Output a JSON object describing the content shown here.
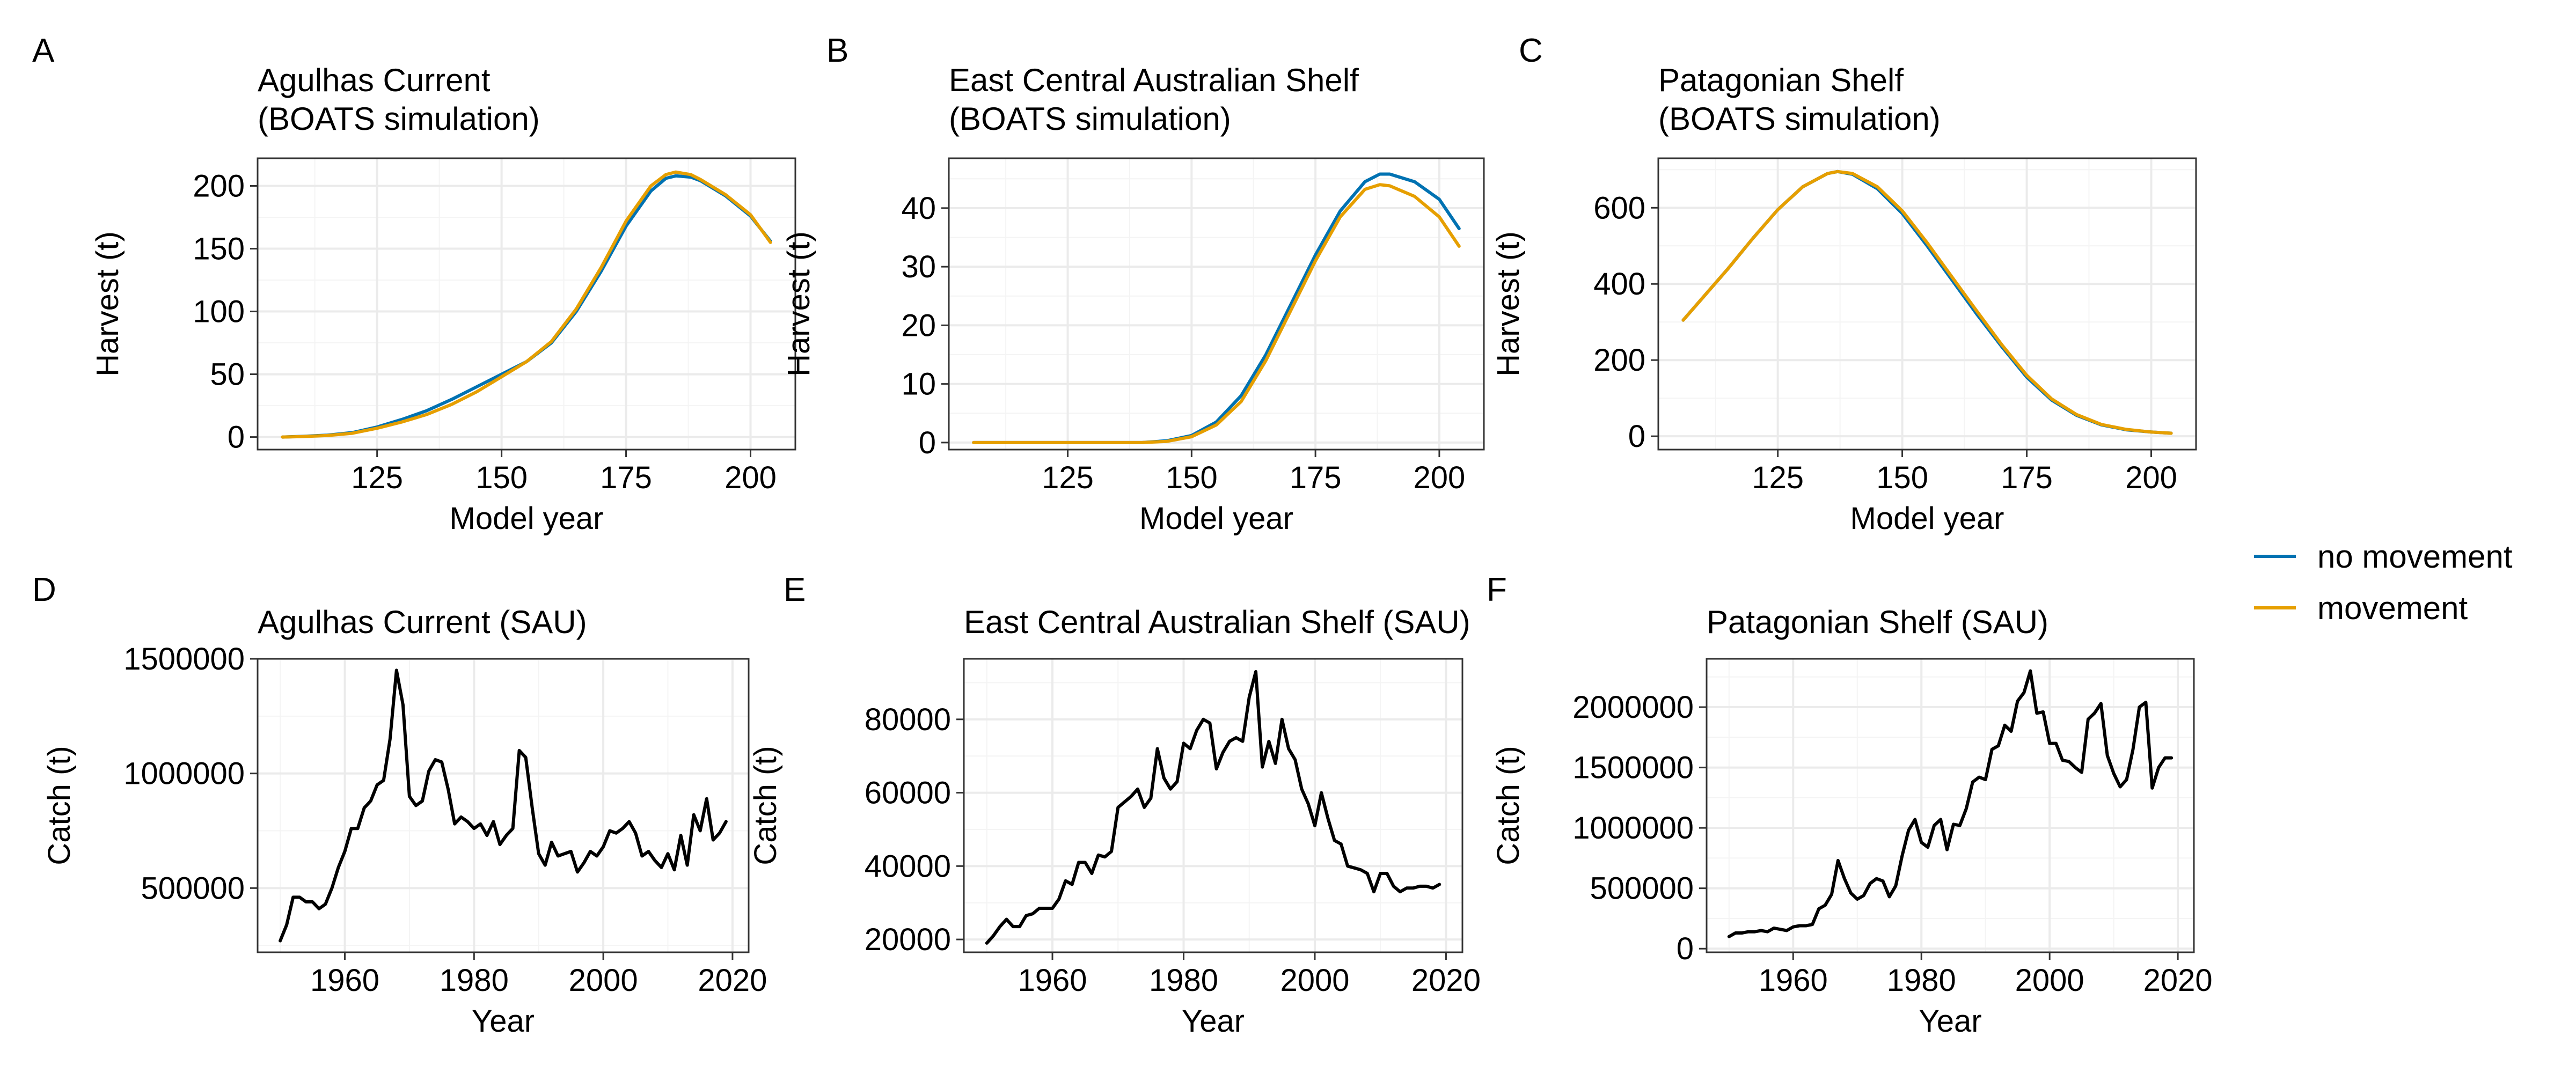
{
  "legend": {
    "entries": [
      {
        "label": "no movement",
        "color": "#0072B2"
      },
      {
        "label": "movement",
        "color": "#E69F00"
      }
    ]
  },
  "chart_data": [
    {
      "type": "line",
      "panel_letter": "A",
      "title": "Agulhas Current",
      "subtitle": "(BOATS simulation)",
      "xlabel": "Model year",
      "ylabel": "Harvest (t)",
      "xlim": [
        101,
        209
      ],
      "ylim": [
        -10,
        222
      ],
      "xticks": [
        125,
        150,
        175,
        200
      ],
      "yticks": [
        0,
        50,
        100,
        150,
        200
      ],
      "grid": true,
      "series": [
        {
          "name": "no movement",
          "color": "#0072B2",
          "x": [
            106,
            110,
            115,
            120,
            125,
            130,
            135,
            140,
            145,
            150,
            155,
            160,
            165,
            170,
            175,
            180,
            183,
            185,
            188,
            190,
            195,
            200,
            204
          ],
          "values": [
            0,
            0.5,
            1.5,
            3.5,
            8,
            14,
            21,
            30,
            40,
            50,
            60,
            75,
            100,
            132,
            168,
            196,
            206,
            208,
            207,
            204,
            192,
            176,
            156
          ]
        },
        {
          "name": "movement",
          "color": "#E69F00",
          "x": [
            106,
            110,
            115,
            120,
            125,
            130,
            135,
            140,
            145,
            150,
            155,
            160,
            165,
            170,
            175,
            180,
            183,
            185,
            188,
            190,
            195,
            200,
            204
          ],
          "values": [
            0,
            0.4,
            1.2,
            3,
            7,
            12,
            18,
            26,
            36,
            48,
            60,
            76,
            102,
            135,
            172,
            200,
            209,
            211,
            209,
            205,
            193,
            177,
            155
          ]
        }
      ]
    },
    {
      "type": "line",
      "panel_letter": "B",
      "title": "East Central Australian Shelf",
      "subtitle": "(BOATS simulation)",
      "xlabel": "Model year",
      "ylabel": "Harvest (t)",
      "xlim": [
        101,
        209
      ],
      "ylim": [
        -1.2,
        48.5
      ],
      "xticks": [
        125,
        150,
        175,
        200
      ],
      "yticks": [
        0,
        10,
        20,
        30,
        40
      ],
      "grid": true,
      "series": [
        {
          "name": "no movement",
          "color": "#0072B2",
          "x": [
            106,
            120,
            130,
            140,
            145,
            150,
            155,
            160,
            165,
            170,
            175,
            180,
            185,
            188,
            190,
            195,
            200,
            204
          ],
          "values": [
            0,
            0,
            0,
            0,
            0.3,
            1.2,
            3.5,
            8,
            15,
            23.5,
            32,
            39.5,
            44.5,
            45.8,
            45.8,
            44.5,
            41.5,
            36.5
          ]
        },
        {
          "name": "movement",
          "color": "#E69F00",
          "x": [
            106,
            120,
            130,
            140,
            145,
            150,
            155,
            160,
            165,
            170,
            175,
            180,
            185,
            188,
            190,
            195,
            200,
            204
          ],
          "values": [
            0,
            0,
            0,
            0,
            0.2,
            1,
            3,
            7,
            14,
            22.5,
            31,
            38.5,
            43.2,
            44,
            43.8,
            42,
            38.5,
            33.5
          ]
        }
      ]
    },
    {
      "type": "line",
      "panel_letter": "C",
      "title": "Patagonian Shelf",
      "subtitle": "(BOATS simulation)",
      "xlabel": "Model year",
      "ylabel": "Harvest (t)",
      "xlim": [
        101,
        209
      ],
      "ylim": [
        -35,
        730
      ],
      "xticks": [
        125,
        150,
        175,
        200
      ],
      "yticks": [
        0,
        200,
        400,
        600
      ],
      "grid": true,
      "series": [
        {
          "name": "no movement",
          "color": "#0072B2",
          "x": [
            106,
            110,
            115,
            120,
            125,
            130,
            135,
            137,
            140,
            145,
            150,
            155,
            160,
            165,
            170,
            175,
            180,
            185,
            190,
            195,
            200,
            204
          ],
          "values": [
            305,
            365,
            440,
            520,
            595,
            655,
            690,
            695,
            688,
            650,
            585,
            500,
            410,
            320,
            235,
            155,
            95,
            55,
            30,
            17,
            11,
            8
          ]
        },
        {
          "name": "movement",
          "color": "#E69F00",
          "x": [
            106,
            110,
            115,
            120,
            125,
            130,
            135,
            137,
            140,
            145,
            150,
            155,
            160,
            165,
            170,
            175,
            180,
            185,
            190,
            195,
            200,
            204
          ],
          "values": [
            305,
            365,
            440,
            520,
            595,
            655,
            690,
            695,
            690,
            655,
            592,
            508,
            418,
            328,
            240,
            160,
            98,
            57,
            31,
            18,
            11,
            8
          ]
        }
      ]
    },
    {
      "type": "line",
      "panel_letter": "D",
      "title": "Agulhas Current (SAU)",
      "xlabel": "Year",
      "ylabel": "Catch (t)",
      "xlim": [
        1946.5,
        2022.5
      ],
      "ylim": [
        220000,
        1500000
      ],
      "xticks": [
        1960,
        1980,
        2000,
        2020
      ],
      "yticks": [
        500000,
        1000000,
        1500000
      ],
      "grid": true,
      "series": [
        {
          "name": "",
          "color": "#000000",
          "x": [
            1950,
            1951,
            1952,
            1953,
            1954,
            1955,
            1956,
            1957,
            1958,
            1959,
            1960,
            1961,
            1962,
            1963,
            1964,
            1965,
            1966,
            1967,
            1968,
            1969,
            1970,
            1971,
            1972,
            1973,
            1974,
            1975,
            1976,
            1977,
            1978,
            1979,
            1980,
            1981,
            1982,
            1983,
            1984,
            1985,
            1986,
            1987,
            1988,
            1989,
            1990,
            1991,
            1992,
            1993,
            1994,
            1995,
            1996,
            1997,
            1998,
            1999,
            2000,
            2001,
            2002,
            2003,
            2004,
            2005,
            2006,
            2007,
            2008,
            2009,
            2010,
            2011,
            2012,
            2013,
            2014,
            2015,
            2016,
            2017,
            2018,
            2019
          ],
          "values": [
            270000,
            340000,
            460000,
            460000,
            440000,
            440000,
            410000,
            430000,
            500000,
            590000,
            660000,
            760000,
            760000,
            850000,
            880000,
            950000,
            970000,
            1150000,
            1450000,
            1300000,
            900000,
            860000,
            880000,
            1010000,
            1060000,
            1050000,
            930000,
            780000,
            810000,
            790000,
            760000,
            780000,
            730000,
            790000,
            690000,
            730000,
            760000,
            1100000,
            1070000,
            850000,
            650000,
            600000,
            700000,
            640000,
            650000,
            660000,
            570000,
            610000,
            660000,
            640000,
            680000,
            750000,
            740000,
            760000,
            790000,
            740000,
            640000,
            660000,
            620000,
            590000,
            650000,
            580000,
            730000,
            600000,
            820000,
            750000,
            890000,
            710000,
            740000,
            790000
          ]
        }
      ]
    },
    {
      "type": "line",
      "panel_letter": "E",
      "title": "East Central Australian Shelf (SAU)",
      "xlabel": "Year",
      "ylabel": "Catch (t)",
      "xlim": [
        1946.5,
        2022.5
      ],
      "ylim": [
        16500,
        96500
      ],
      "xticks": [
        1960,
        1980,
        2000,
        2020
      ],
      "yticks": [
        20000,
        40000,
        60000,
        80000
      ],
      "grid": true,
      "series": [
        {
          "name": "",
          "color": "#000000",
          "x": [
            1950,
            1951,
            1952,
            1953,
            1954,
            1955,
            1956,
            1957,
            1958,
            1959,
            1960,
            1961,
            1962,
            1963,
            1964,
            1965,
            1966,
            1967,
            1968,
            1969,
            1970,
            1971,
            1972,
            1973,
            1974,
            1975,
            1976,
            1977,
            1978,
            1979,
            1980,
            1981,
            1982,
            1983,
            1984,
            1985,
            1986,
            1987,
            1988,
            1989,
            1990,
            1991,
            1992,
            1993,
            1994,
            1995,
            1996,
            1997,
            1998,
            1999,
            2000,
            2001,
            2002,
            2003,
            2004,
            2005,
            2006,
            2007,
            2008,
            2009,
            2010,
            2011,
            2012,
            2013,
            2014,
            2015,
            2016,
            2017,
            2018,
            2019
          ],
          "values": [
            19000,
            21000,
            23500,
            25500,
            23500,
            23500,
            26500,
            27000,
            28500,
            28500,
            28500,
            31000,
            36000,
            35000,
            41000,
            41000,
            38000,
            43000,
            42500,
            44000,
            56000,
            57500,
            59000,
            61000,
            56000,
            58500,
            72000,
            64000,
            61000,
            63000,
            73500,
            72000,
            77000,
            80000,
            79000,
            66500,
            71000,
            74000,
            75000,
            74000,
            86000,
            93000,
            67000,
            74000,
            68000,
            80000,
            72000,
            69000,
            61000,
            57000,
            51000,
            60000,
            53000,
            47000,
            46000,
            40000,
            39500,
            39000,
            38000,
            33000,
            38000,
            38000,
            34500,
            33000,
            34000,
            34000,
            34500,
            34500,
            34000,
            35000
          ]
        }
      ]
    },
    {
      "type": "line",
      "panel_letter": "F",
      "title": "Patagonian Shelf (SAU)",
      "xlabel": "Year",
      "ylabel": "Catch (t)",
      "xlim": [
        1946.5,
        2022.5
      ],
      "ylim": [
        -30000,
        2400000
      ],
      "xticks": [
        1960,
        1980,
        2000,
        2020
      ],
      "yticks": [
        0,
        500000,
        1000000,
        1500000,
        2000000
      ],
      "grid": true,
      "series": [
        {
          "name": "",
          "color": "#000000",
          "x": [
            1950,
            1951,
            1952,
            1953,
            1954,
            1955,
            1956,
            1957,
            1958,
            1959,
            1960,
            1961,
            1962,
            1963,
            1964,
            1965,
            1966,
            1967,
            1968,
            1969,
            1970,
            1971,
            1972,
            1973,
            1974,
            1975,
            1976,
            1977,
            1978,
            1979,
            1980,
            1981,
            1982,
            1983,
            1984,
            1985,
            1986,
            1987,
            1988,
            1989,
            1990,
            1991,
            1992,
            1993,
            1994,
            1995,
            1996,
            1997,
            1998,
            1999,
            2000,
            2001,
            2002,
            2003,
            2004,
            2005,
            2006,
            2007,
            2008,
            2009,
            2010,
            2011,
            2012,
            2013,
            2014,
            2015,
            2016,
            2017,
            2018,
            2019
          ],
          "values": [
            100000,
            130000,
            130000,
            140000,
            140000,
            150000,
            140000,
            170000,
            160000,
            150000,
            180000,
            190000,
            190000,
            200000,
            330000,
            360000,
            450000,
            730000,
            580000,
            460000,
            410000,
            440000,
            540000,
            580000,
            560000,
            430000,
            520000,
            770000,
            980000,
            1070000,
            880000,
            840000,
            1020000,
            1070000,
            820000,
            1030000,
            1020000,
            1160000,
            1380000,
            1420000,
            1400000,
            1650000,
            1680000,
            1850000,
            1800000,
            2050000,
            2120000,
            2300000,
            1950000,
            1960000,
            1700000,
            1700000,
            1560000,
            1550000,
            1500000,
            1460000,
            1900000,
            1950000,
            2030000,
            1600000,
            1450000,
            1340000,
            1400000,
            1650000,
            2000000,
            2040000,
            1330000,
            1500000,
            1580000,
            1580000
          ]
        }
      ]
    }
  ]
}
